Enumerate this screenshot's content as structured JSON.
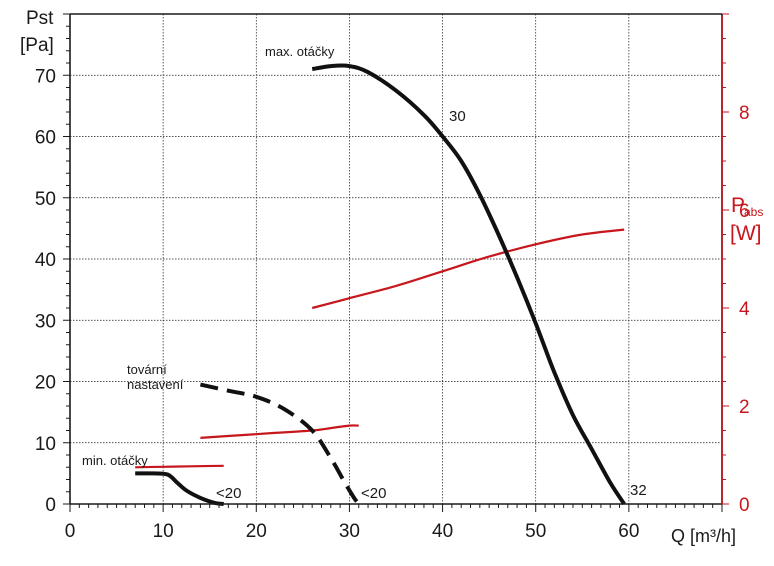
{
  "chart_data": {
    "type": "line",
    "title": "",
    "ylabel": {
      "line1": "Pst",
      "line2": "[Pa]"
    },
    "y2label": {
      "main": "P",
      "sub": "abs",
      "unit": "[W]"
    },
    "xlabel": "Q [m³/h]",
    "xlim": [
      0,
      70
    ],
    "ylim": [
      0,
      80
    ],
    "y2lim": [
      0,
      10
    ],
    "xticks": [
      0,
      10,
      20,
      30,
      40,
      50,
      60
    ],
    "yticks": [
      0,
      10,
      20,
      30,
      40,
      50,
      60,
      70
    ],
    "y2ticks": [
      0,
      2,
      4,
      6,
      8
    ],
    "grid": true,
    "pressure_series": [
      {
        "name": "max. otáčky",
        "style": "solid",
        "x": [
          26,
          28,
          30,
          32,
          35,
          38,
          40,
          42,
          44,
          46,
          48,
          50,
          52,
          54,
          56,
          58,
          59.5
        ],
        "y": [
          71,
          71.5,
          71.5,
          70.5,
          67.5,
          63.5,
          60,
          56,
          50.5,
          44,
          37,
          29.5,
          21.5,
          14.5,
          9,
          3.5,
          0
        ]
      },
      {
        "name": "tovární nastavení",
        "style": "dashed",
        "x": [
          14,
          17,
          20,
          23,
          26,
          28,
          29.5,
          30.5,
          31
        ],
        "y": [
          19.5,
          18.5,
          17.5,
          15.5,
          12,
          7.5,
          3.5,
          1,
          0
        ]
      },
      {
        "name": "min. otáčky",
        "style": "solid",
        "x": [
          7,
          9,
          10.5,
          11.5,
          12.5,
          14,
          15.5,
          16.5
        ],
        "y": [
          5,
          5,
          4.8,
          3.5,
          2.2,
          1,
          0.2,
          0
        ]
      }
    ],
    "power_series": [
      {
        "name": "max. otáčky",
        "x": [
          26,
          30,
          35,
          40,
          45,
          50,
          55,
          59.5
        ],
        "y": [
          4,
          4.2,
          4.45,
          4.75,
          5.05,
          5.3,
          5.5,
          5.6
        ]
      },
      {
        "name": "tovární nastavení",
        "x": [
          14,
          18,
          22,
          26,
          28,
          30,
          31
        ],
        "y": [
          1.35,
          1.4,
          1.45,
          1.5,
          1.55,
          1.6,
          1.6
        ]
      },
      {
        "name": "min. otáčky",
        "x": [
          7,
          10,
          13,
          16.5
        ],
        "y": [
          0.75,
          0.76,
          0.77,
          0.78
        ]
      }
    ],
    "annotations": [
      {
        "text": "max. otáčky"
      },
      {
        "text": "30"
      },
      {
        "text": "tovární"
      },
      {
        "text": "nastavení"
      },
      {
        "text": "min. otáčky"
      },
      {
        "text": "<20"
      },
      {
        "text": "<20"
      },
      {
        "text": "32"
      }
    ],
    "colors": {
      "pressure": "#111111",
      "power": "#c8161d",
      "axis": "#1a1a1a",
      "grid": "#1a1a1a"
    }
  }
}
